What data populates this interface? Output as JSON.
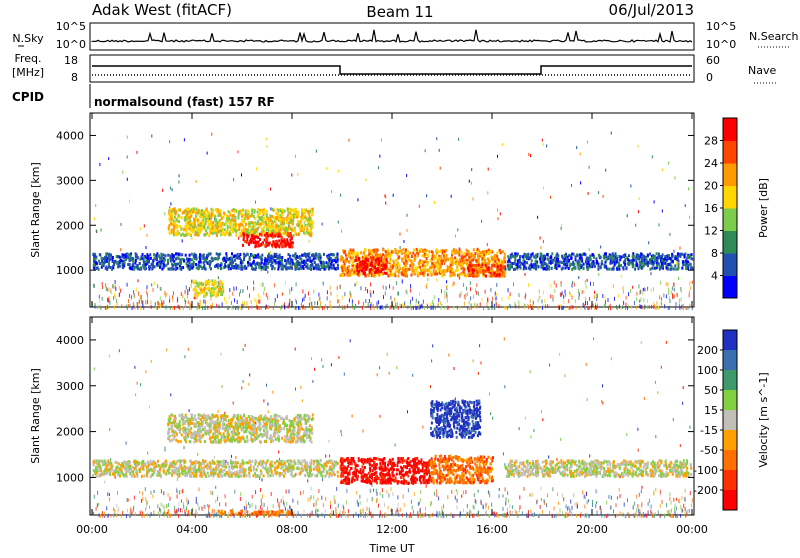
{
  "header": {
    "station": "Adak West (fitACF)",
    "beam": "Beam 11",
    "date": "06/Jul/2013"
  },
  "strips": {
    "nsky_label": "N.Sky",
    "nsearch_label": "N.Search",
    "nsky_ticks": [
      "10^5",
      "10^0"
    ],
    "nsearch_ticks": [
      "10^5",
      "10^0"
    ],
    "freq_label": "Freq.",
    "freq_unit": "[MHz]",
    "freq_ticks": [
      "18",
      "8"
    ],
    "nave_label": "Nave",
    "nave_ticks": [
      "60",
      "0"
    ],
    "cpid_label": "CPID",
    "cpid_text": "normalsound (fast) 157 RF"
  },
  "time_axis": {
    "label": "Time UT",
    "ticks": [
      "00:00",
      "04:00",
      "08:00",
      "12:00",
      "16:00",
      "20:00",
      "00:00"
    ]
  },
  "chart_data": [
    {
      "type": "heatmap",
      "name": "power",
      "ylabel": "Slant Range [km]",
      "yticks": [
        "1000",
        "2000",
        "3000",
        "4000"
      ],
      "ylim": [
        180,
        4500
      ],
      "xlim": [
        0,
        24
      ],
      "colorbar": {
        "label": "Power [dB]",
        "ticks": [
          "4",
          "8",
          "12",
          "16",
          "20",
          "24",
          "28"
        ],
        "colors": [
          "#0000ff",
          "#2150b0",
          "#2e8b57",
          "#7ccd4c",
          "#ffd700",
          "#ff9a00",
          "#ff4500",
          "#ff0000"
        ]
      },
      "features": [
        {
          "t0": 0.0,
          "t1": 9.8,
          "r0": 1050,
          "r1": 1400,
          "level": 1
        },
        {
          "t0": 3.0,
          "t1": 8.8,
          "r0": 1800,
          "r1": 2400,
          "level": 4
        },
        {
          "t0": 6.0,
          "t1": 8.0,
          "r0": 1550,
          "r1": 1850,
          "level": 7
        },
        {
          "t0": 9.9,
          "t1": 16.5,
          "r0": 900,
          "r1": 1500,
          "level": 5
        },
        {
          "t0": 10.5,
          "t1": 11.8,
          "r0": 950,
          "r1": 1300,
          "level": 7
        },
        {
          "t0": 15.0,
          "t1": 16.5,
          "r0": 900,
          "r1": 1150,
          "level": 6
        },
        {
          "t0": 16.5,
          "t1": 24.0,
          "r0": 1050,
          "r1": 1400,
          "level": 1
        },
        {
          "t0": 4.0,
          "t1": 5.2,
          "r0": 450,
          "r1": 800,
          "level": 4
        }
      ]
    },
    {
      "type": "heatmap",
      "name": "velocity",
      "ylabel": "Slant Range [km]",
      "yticks": [
        "1000",
        "2000",
        "3000",
        "4000"
      ],
      "ylim": [
        180,
        4500
      ],
      "xlim": [
        0,
        24
      ],
      "colorbar": {
        "label": "Velocity [m s^-1]",
        "ticks": [
          "200",
          "100",
          "50",
          "15",
          "-15",
          "-50",
          "-100",
          "-200"
        ],
        "colors": [
          "#2030c0",
          "#3a70b0",
          "#3c9a6c",
          "#80d040",
          "#c0c0b8",
          "#ffa000",
          "#ff7000",
          "#ff3000",
          "#ff0000"
        ]
      },
      "features": [
        {
          "t0": 0.0,
          "t1": 9.8,
          "r0": 1050,
          "r1": 1400,
          "level": 4
        },
        {
          "t0": 3.0,
          "t1": 8.8,
          "r0": 1800,
          "r1": 2400,
          "level": 4
        },
        {
          "t0": 9.9,
          "t1": 13.5,
          "r0": 900,
          "r1": 1450,
          "level": 8
        },
        {
          "t0": 13.5,
          "t1": 16.0,
          "r0": 900,
          "r1": 1500,
          "level": 6
        },
        {
          "t0": 13.5,
          "t1": 15.5,
          "r0": 1900,
          "r1": 2700,
          "level": 0
        },
        {
          "t0": 16.5,
          "t1": 24.0,
          "r0": 1050,
          "r1": 1400,
          "level": 4
        },
        {
          "t0": 5.0,
          "t1": 8.0,
          "r0": 200,
          "r1": 300,
          "level": 6
        }
      ]
    }
  ]
}
